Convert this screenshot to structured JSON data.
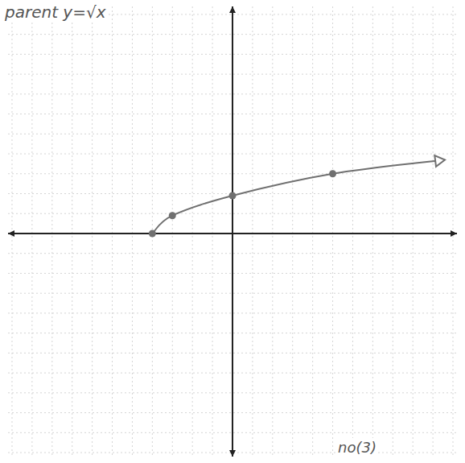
{
  "chart_data": {
    "type": "line",
    "title": "parent y=√x",
    "annotations": [
      "no(3)"
    ],
    "xlim": [
      -11.2,
      11.2
    ],
    "ylim": [
      -11.2,
      11.4
    ],
    "xticks": [
      -11,
      -10,
      -9,
      -8,
      -7,
      -6,
      -5,
      -4,
      -3,
      -2,
      -1,
      0,
      1,
      2,
      3,
      4,
      5,
      6,
      7,
      8,
      9,
      10,
      11
    ],
    "yticks": [
      -11,
      -10,
      -9,
      -8,
      -7,
      -6,
      -5,
      -4,
      -3,
      -2,
      -1,
      0,
      1,
      2,
      3,
      4,
      5,
      6,
      7,
      8,
      9,
      10,
      11
    ],
    "grid": true,
    "tick_labels": false,
    "series": [
      {
        "color": "#707070",
        "marker": "circle",
        "line_style": "solid",
        "x": [
          -4,
          -3,
          0,
          5,
          10.6
        ],
        "values": [
          0,
          0.9,
          1.9,
          3,
          3.7
        ]
      }
    ]
  }
}
